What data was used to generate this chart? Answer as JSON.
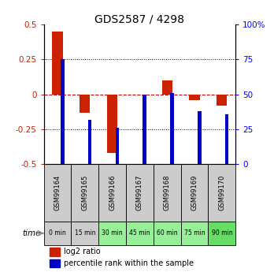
{
  "title": "GDS2587 / 4298",
  "samples": [
    "GSM99164",
    "GSM99165",
    "GSM99166",
    "GSM99167",
    "GSM99168",
    "GSM99169",
    "GSM99170"
  ],
  "time_labels": [
    "0 min",
    "15 min",
    "30 min",
    "45 min",
    "60 min",
    "75 min",
    "90 min"
  ],
  "log2_ratio": [
    0.45,
    -0.13,
    -0.42,
    0.0,
    0.1,
    -0.04,
    -0.08
  ],
  "percentile_rank": [
    75,
    32,
    26,
    50,
    51,
    38,
    36
  ],
  "ylim_left": [
    -0.5,
    0.5
  ],
  "ylim_right": [
    0,
    100
  ],
  "yticks_left": [
    -0.5,
    -0.25,
    0,
    0.25,
    0.5
  ],
  "yticks_right": [
    0,
    25,
    50,
    75,
    100
  ],
  "bar_color_red": "#cc2200",
  "bar_color_blue": "#0000cc",
  "zero_line_color": "#cc0000",
  "sample_bg_color": "#cccccc",
  "time_bg_colors": [
    "#cccccc",
    "#cccccc",
    "#99ee99",
    "#99ee99",
    "#99ee99",
    "#99ee99",
    "#66dd66"
  ],
  "legend_red_label": "log2 ratio",
  "legend_blue_label": "percentile rank within the sample"
}
